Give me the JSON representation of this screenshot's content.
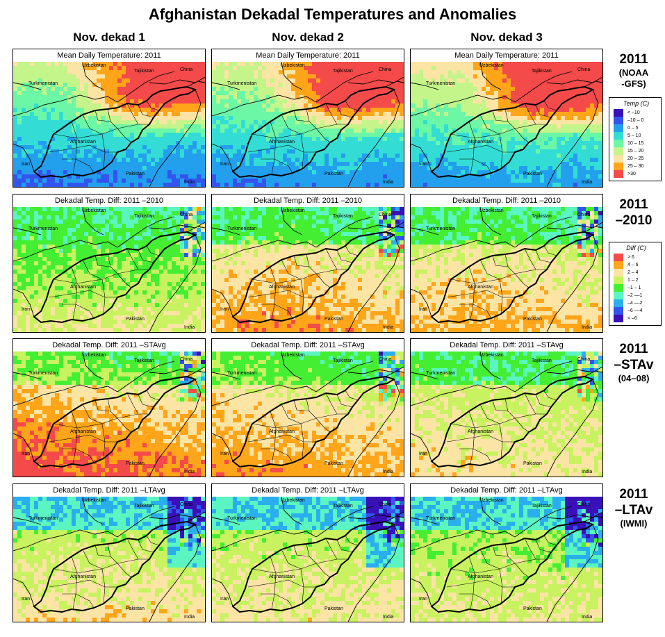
{
  "title": "Afghanistan Dekadal Temperatures and Anomalies",
  "columns": [
    "Nov. dekad 1",
    "Nov. dekad 2",
    "Nov. dekad 3"
  ],
  "rows": [
    {
      "label_main": "2011",
      "label_sub": [
        "(NOAA",
        "-GFS)"
      ],
      "panel_title": "Mean Daily Temperature: 2011",
      "scale": "temp"
    },
    {
      "label_main": "2011",
      "label_sub": [
        "–2010"
      ],
      "panel_title": "Dekadal Temp. Diff:  2011 –2010",
      "scale": "diff"
    },
    {
      "label_main": "2011",
      "label_sub": [
        "–STAv",
        "(04–08)"
      ],
      "panel_title": "Dekadal Temp. Diff:  2011 –STAvg",
      "scale": "diff"
    },
    {
      "label_main": "2011",
      "label_sub": [
        "–LTAv",
        "(IWMI)"
      ],
      "panel_title": "Dekadal Temp. Diff:  2011 –LTAvg",
      "scale": "diff"
    }
  ],
  "map_labels": {
    "uzbekistan": "Uzbekistan",
    "tajikistan": "Tajikistan",
    "china": "China",
    "turkmenistan": "Turkmenistan",
    "afghanistan": "Afghanistan",
    "iran": "Iran",
    "pakistan": "Pakistan",
    "india": "India"
  },
  "legend_temp": {
    "title": "Temp (C)",
    "items": [
      {
        "label": "< –10",
        "color": "#3a10b8"
      },
      {
        "label": "–10 –  0",
        "color": "#3355ee"
      },
      {
        "label": "0 –  5",
        "color": "#22a0ee"
      },
      {
        "label": "5 – 10",
        "color": "#33ddd6"
      },
      {
        "label": "10 – 15",
        "color": "#6bf7a6"
      },
      {
        "label": "15 – 20",
        "color": "#c3f58a"
      },
      {
        "label": "20 – 25",
        "color": "#fce4a4"
      },
      {
        "label": "25 – 30",
        "color": "#fea51a"
      },
      {
        "label": ">30",
        "color": "#f54a4a"
      }
    ]
  },
  "legend_diff": {
    "title": "Diff (C)",
    "items": [
      {
        "label": "> 6",
        "color": "#f54a4a"
      },
      {
        "label": "4 – 6",
        "color": "#fea51a"
      },
      {
        "label": "2 – 4",
        "color": "#fce4a4"
      },
      {
        "label": "1 – 2",
        "color": "#c8f260"
      },
      {
        "label": "–1 – 1",
        "color": "#44ee33"
      },
      {
        "label": "–2 ––1",
        "color": "#5af5c0"
      },
      {
        "label": "–4 ––2",
        "color": "#2aaeee"
      },
      {
        "label": "–6 ––4",
        "color": "#3355ee"
      },
      {
        "label": "< –6",
        "color": "#3a10b8"
      }
    ]
  }
}
